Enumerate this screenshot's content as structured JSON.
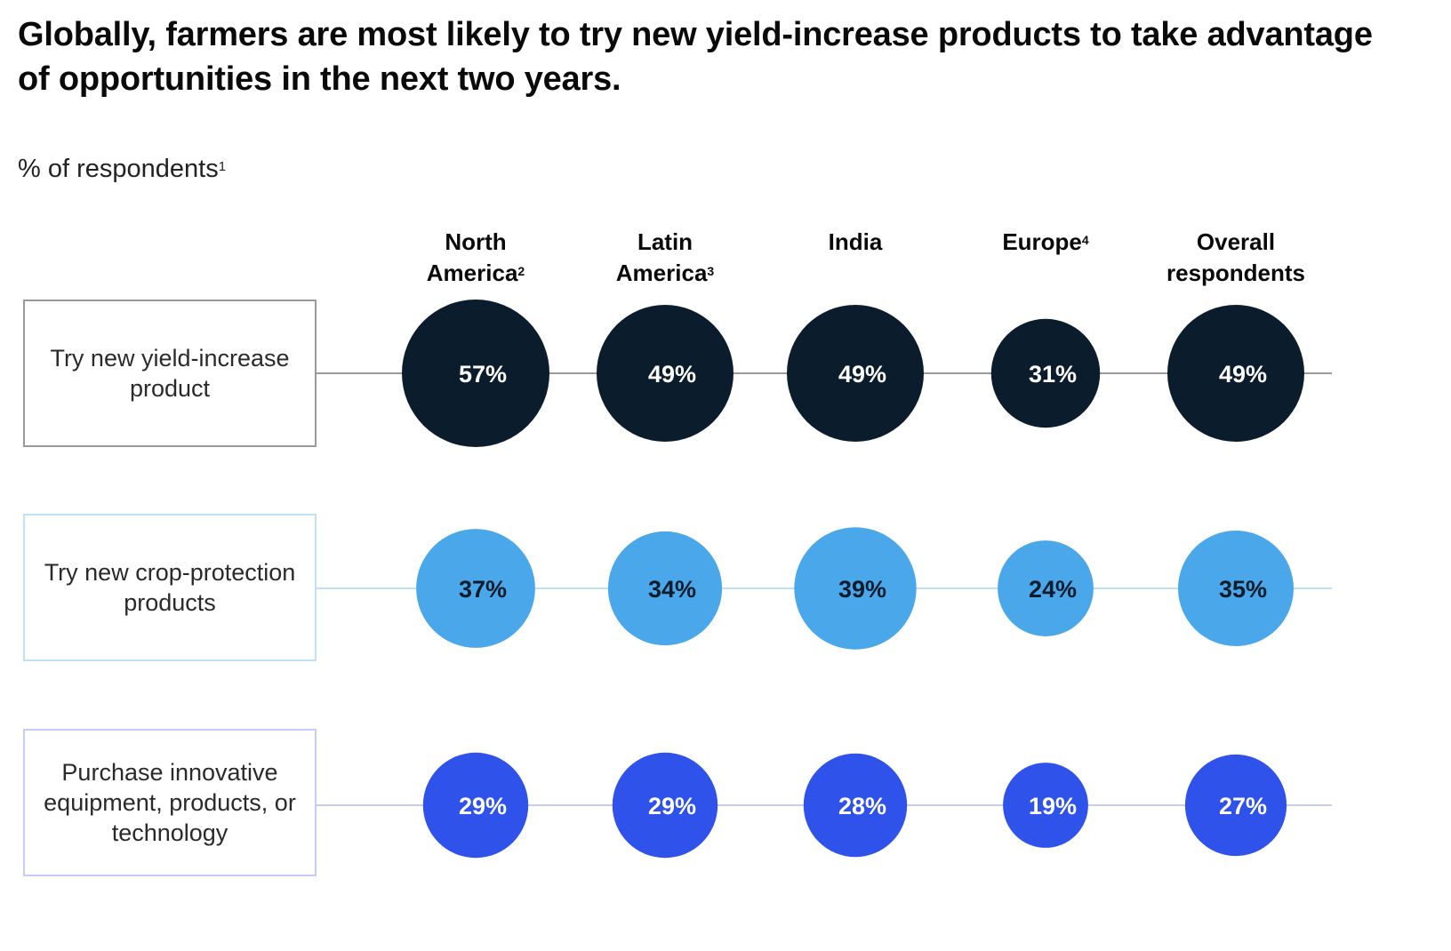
{
  "chart_data": {
    "type": "bubble-grid",
    "title": "Globally, farmers are most likely to try new yield-increase products to take advantage of opportunities in the next two years.",
    "subtitle": "% of respondents",
    "subtitle_footnote": "1",
    "unit": "%",
    "columns": [
      {
        "label_line1": "North",
        "label_line2": "America",
        "footnote": "2"
      },
      {
        "label_line1": "Latin",
        "label_line2": "America",
        "footnote": "3"
      },
      {
        "label_line1": "India",
        "label_line2": "",
        "footnote": ""
      },
      {
        "label_line1": "Europe",
        "label_line2": "",
        "footnote": "4"
      },
      {
        "label_line1": "Overall",
        "label_line2": "respondents",
        "footnote": ""
      }
    ],
    "categories": [
      "North America",
      "Latin America",
      "India",
      "Europe",
      "Overall respondents"
    ],
    "series": [
      {
        "name": "Try new yield-increase product",
        "values": [
          57,
          49,
          49,
          31,
          49
        ],
        "color": "#0b1c2c",
        "label_color": "#ffffff",
        "line_color": "#9a9a9a",
        "box_border_color": "#9a9a9a"
      },
      {
        "name": "Try new crop-protection products",
        "values": [
          37,
          34,
          39,
          24,
          35
        ],
        "color": "#4aa8ea",
        "label_color": "#0b1c2c",
        "line_color": "#bfe0f5",
        "box_border_color": "#bfe0f5"
      },
      {
        "name": "Purchase innovative equipment, products, or technology",
        "values": [
          29,
          29,
          28,
          19,
          27
        ],
        "color": "#2f52ea",
        "label_color": "#ffffff",
        "line_color": "#c5cdf5",
        "box_border_color": "#c5cdf5"
      }
    ]
  }
}
